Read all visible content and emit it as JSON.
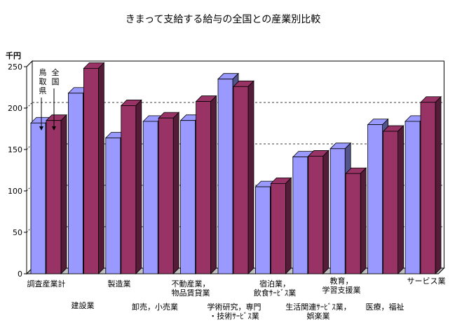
{
  "chart_data": {
    "type": "bar",
    "title": "きまって支給する給与の全国との産業別比較",
    "ylabel": "千円",
    "xlabel": "",
    "ylim": [
      0,
      250
    ],
    "yticks": [
      0,
      50,
      100,
      150,
      200,
      250
    ],
    "grid": true,
    "categories": [
      "調査産業計",
      "建設業",
      "製造業",
      "卸売，小売業",
      "不動産業，\n物品賃貸業",
      "学術研究，専門\n・技術ｻｰﾋﾞｽ業",
      "宿泊業，\n飲食ｻｰﾋﾞｽ業",
      "生活関連ｻｰﾋﾞｽ業，\n娯楽業",
      "教育，\n学習支援業",
      "医療，福祉",
      "サービス業"
    ],
    "series": [
      {
        "name": "鳥取県",
        "color": "#9999ff",
        "values": [
          182,
          218,
          164,
          184,
          185,
          235,
          105,
          141,
          151,
          180,
          184
        ]
      },
      {
        "name": "全国",
        "color": "#993366",
        "values": [
          185,
          248,
          203,
          188,
          208,
          226,
          109,
          142,
          121,
          172,
          207
        ]
      }
    ],
    "legend": {
      "placement": "inside-top-left",
      "labels": [
        "鳥取県",
        "全国"
      ]
    }
  }
}
